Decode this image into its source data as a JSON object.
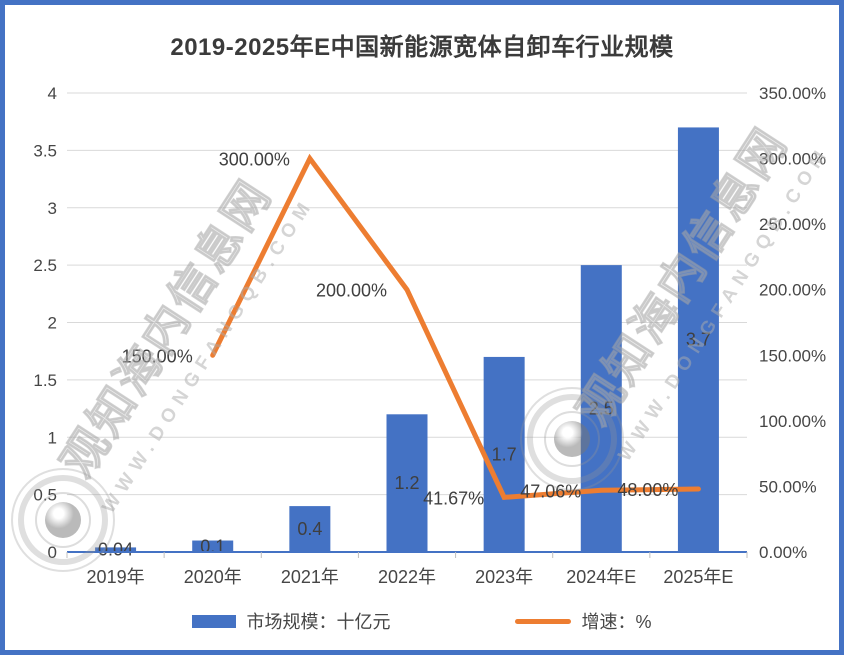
{
  "title": "2019-2025年E中国新能源宽体自卸车行业规模",
  "legend": {
    "bar_label": "市场规模：十亿元",
    "line_label": "增速：%"
  },
  "watermark": {
    "cn": "观知海内信息网",
    "en": "WWW.DONGFANGQB.COM"
  },
  "colors": {
    "bar": "#4472C4",
    "line": "#ED7D31",
    "axis_line": "#4472C4",
    "gridline": "#D9D9D9",
    "tick": "#BFBFBF",
    "border": "#4472C4",
    "label_text": "#3f3f3f"
  },
  "chart_data": {
    "type": "bar",
    "subtype": "bar+line combo, dual axis",
    "title": "2019-2025年E中国新能源宽体自卸车行业规模",
    "categories": [
      "2019年",
      "2020年",
      "2021年",
      "2022年",
      "2023年",
      "2024年E",
      "2025年E"
    ],
    "series": [
      {
        "name": "市场规模：十亿元",
        "type": "bar",
        "axis": "left",
        "color": "#4472C4",
        "values": [
          0.04,
          0.1,
          0.4,
          1.2,
          1.7,
          2.5,
          3.7
        ],
        "labels": [
          "0.04",
          "0.1",
          "0.4",
          "1.2",
          "1.7",
          "2.5",
          "3.7"
        ]
      },
      {
        "name": "增速：%",
        "type": "line",
        "axis": "right",
        "color": "#ED7D31",
        "values": [
          null,
          150,
          300,
          200,
          41.67,
          47.06,
          48
        ],
        "labels": [
          null,
          "150.00%",
          "300.00%",
          "200.00%",
          "41.67%",
          "47.06%",
          "48.00%"
        ]
      }
    ],
    "left_axis": {
      "min": 0,
      "max": 4,
      "step": 0.5,
      "ticks": [
        "0",
        "0.5",
        "1",
        "1.5",
        "2",
        "2.5",
        "3",
        "3.5",
        "4"
      ]
    },
    "right_axis": {
      "min": 0,
      "max": 350,
      "step": 50,
      "ticks": [
        "0.00%",
        "50.00%",
        "100.00%",
        "150.00%",
        "200.00%",
        "250.00%",
        "300.00%",
        "350.00%"
      ]
    },
    "grid": true,
    "legend_position": "bottom"
  }
}
